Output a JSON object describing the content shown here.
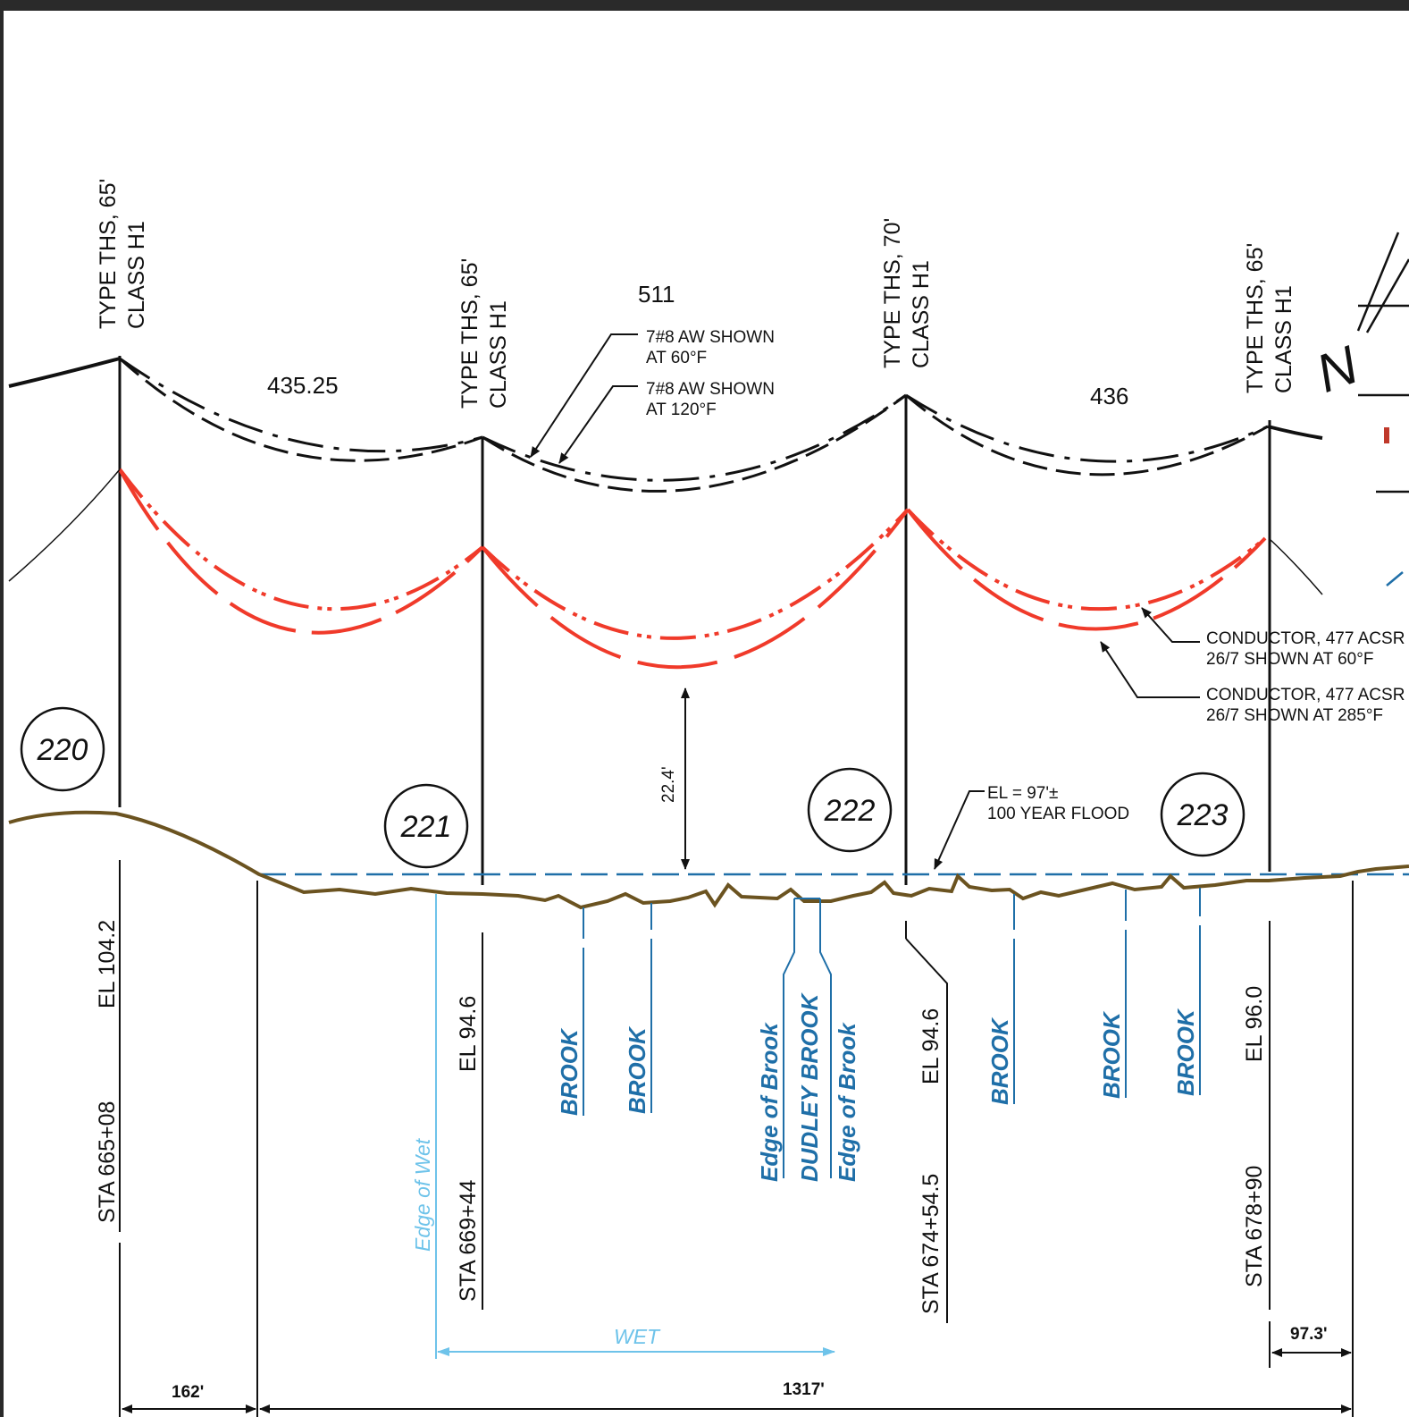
{
  "structures": [
    {
      "bubble": "220",
      "type": "TYPE THS, 65'",
      "class": "CLASS H1",
      "station": "STA 665+08",
      "elevation": "EL 104.2"
    },
    {
      "bubble": "221",
      "type": "TYPE THS, 65'",
      "class": "CLASS H1",
      "station": "STA 669+44",
      "elevation": "EL 94.6"
    },
    {
      "bubble": "222",
      "type": "TYPE THS, 70'",
      "class": "CLASS H1",
      "station": "STA 674+54.5",
      "elevation": "EL 94.6"
    },
    {
      "bubble": "223",
      "type": "TYPE THS, 65'",
      "class": "CLASS H1",
      "station": "STA 678+90",
      "elevation": "EL 96.0"
    }
  ],
  "spans": [
    "435.25",
    "511",
    "436"
  ],
  "shield_wire_notes": [
    {
      "line1": "7#8 AW SHOWN",
      "line2": "AT 60°F"
    },
    {
      "line1": "7#8 AW SHOWN",
      "line2": "AT 120°F"
    }
  ],
  "conductor_notes": [
    {
      "line1": "CONDUCTOR, 477 ACSR",
      "line2": "26/7 SHOWN AT 60°F"
    },
    {
      "line1": "CONDUCTOR, 477 ACSR",
      "line2": "26/7 SHOWN AT 285°F"
    }
  ],
  "clearance": "22.4'",
  "flood_note": {
    "line1": "EL = 97'±",
    "line2": "100 YEAR FLOOD"
  },
  "features": {
    "edge_of_wet": "Edge of Wet",
    "brook": "BROOK",
    "edge_of_brook": "Edge of Brook",
    "dudley_brook": "DUDLEY BROOK",
    "wet": "WET"
  },
  "dimensions": {
    "left": "162'",
    "total": "1317'",
    "right": "97.3'"
  },
  "colors": {
    "conductor": "#f03a2a",
    "ground": "#6b5320",
    "water": "#1f6fa8",
    "wetland": "#6ec3ea",
    "linework": "#111111"
  }
}
